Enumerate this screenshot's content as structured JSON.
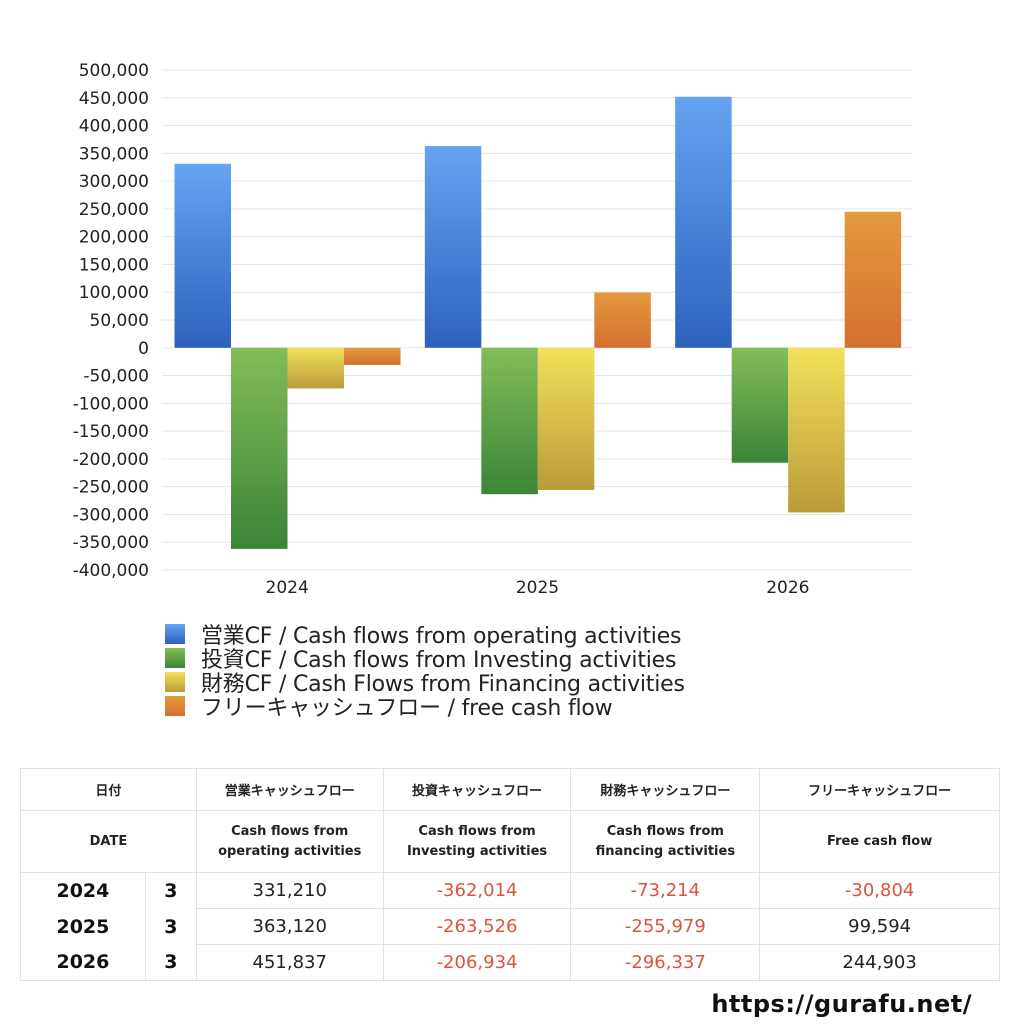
{
  "chart_data": {
    "type": "bar",
    "title": "",
    "xlabel": "",
    "ylabel": "",
    "categories": [
      "2024",
      "2025",
      "2026"
    ],
    "series": [
      {
        "name": "営業CF / Cash flows from operating activities",
        "values": [
          331210,
          363120,
          451837
        ],
        "color": "#4a86e0"
      },
      {
        "name": "投資CF / Cash flows from Investing activities",
        "values": [
          -362014,
          -263526,
          -206934
        ],
        "color": "#5aa74a"
      },
      {
        "name": "財務CF / Cash Flows from Financing activities",
        "values": [
          -73214,
          -255979,
          -296337
        ],
        "color": "#e0c64a"
      },
      {
        "name": "フリーキャッシュフロー / free cash flow",
        "values": [
          -30804,
          99594,
          244903
        ],
        "color": "#e0843a"
      }
    ],
    "ylim": [
      -400000,
      500000
    ],
    "yticks": [
      "500,000",
      "450,000",
      "400,000",
      "350,000",
      "300,000",
      "250,000",
      "200,000",
      "150,000",
      "100,000",
      "50,000",
      "0",
      "-50,000",
      "-100,000",
      "-150,000",
      "-200,000",
      "-250,000",
      "-300,000",
      "-350,000",
      "-400,000"
    ],
    "grid": true,
    "legend_position": "bottom"
  },
  "legend": [
    {
      "label": "営業CF / Cash flows from operating activities"
    },
    {
      "label": "投資CF / Cash flows from Investing activities"
    },
    {
      "label": "財務CF / Cash Flows from Financing activities"
    },
    {
      "label": "フリーキャッシュフロー / free cash flow"
    }
  ],
  "table": {
    "header_jp": [
      "日付",
      "営業キャッシュフロー",
      "投資キャッシュフロー",
      "財務キャッシュフロー",
      "フリーキャッシュフロー"
    ],
    "header_en": [
      "DATE",
      "Cash flows from operating activities",
      "Cash flows from Investing activities",
      "Cash flows from financing activities",
      "Free cash flow"
    ],
    "header_en_lines": [
      [
        "DATE"
      ],
      [
        "Cash flows from",
        "operating activities"
      ],
      [
        "Cash flows from",
        "Investing activities"
      ],
      [
        "Cash flows from",
        "financing activities"
      ],
      [
        "Free cash flow"
      ]
    ],
    "rows": [
      {
        "year": "2024",
        "month": "3",
        "operating": "331,210",
        "investing": "-362,014",
        "financing": "-73,214",
        "free": "-30,804"
      },
      {
        "year": "2025",
        "month": "3",
        "operating": "363,120",
        "investing": "-263,526",
        "financing": "-255,979",
        "free": "99,594"
      },
      {
        "year": "2026",
        "month": "3",
        "operating": "451,837",
        "investing": "-206,934",
        "financing": "-296,337",
        "free": "244,903"
      }
    ]
  },
  "footer": {
    "url": "https://gurafu.net/"
  }
}
